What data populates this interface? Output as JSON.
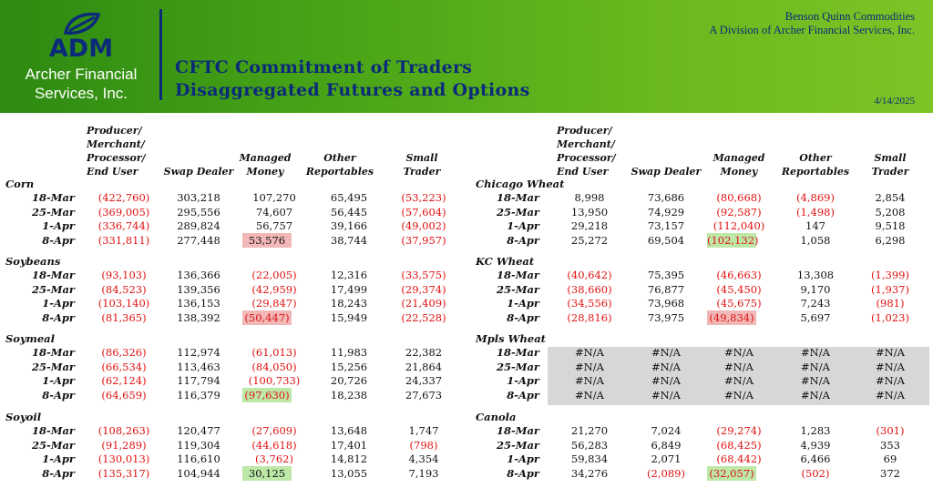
{
  "header": {
    "logo_text": "ADM",
    "company_line1": "Archer Financial",
    "company_line2": "Services, Inc.",
    "title_line1": "CFTC Commitment of Traders",
    "title_line2": "Disaggregated Futures and Options",
    "firm_name": "Benson Quinn Commodities",
    "firm_division": "A Division of Archer Financial Services, Inc.",
    "date": "4/14/2025",
    "colors": {
      "brand_blue": "#0b2a7a",
      "banner_green": "#48a416",
      "negative": "#e01010",
      "highlight_red": "#f2b7b7",
      "highlight_green": "#bde8a8",
      "na_gray": "#d7d7d7"
    }
  },
  "columns": {
    "producer": [
      "Producer/",
      "Merchant/",
      "Processor/",
      "End User"
    ],
    "swap": "Swap Dealer",
    "managed": [
      "Managed",
      "Money"
    ],
    "other": [
      "Other",
      "Reportables"
    ],
    "small": [
      "Small",
      "Trader"
    ]
  },
  "left_sections": [
    {
      "name": "Corn",
      "rows": [
        {
          "date": "18-Mar",
          "values": [
            "(422,760)",
            "303,218",
            "107,270",
            "65,495",
            "(53,223)"
          ]
        },
        {
          "date": "25-Mar",
          "values": [
            "(369,005)",
            "295,556",
            "74,607",
            "56,445",
            "(57,604)"
          ]
        },
        {
          "date": "1-Apr",
          "values": [
            "(336,744)",
            "289,824",
            "56,757",
            "39,166",
            "(49,002)"
          ]
        },
        {
          "date": "8-Apr",
          "values": [
            "(331,811)",
            "277,448",
            "53,576",
            "38,744",
            "(37,957)"
          ],
          "highlight": {
            "col": 2,
            "color": "red"
          }
        }
      ]
    },
    {
      "name": "Soybeans",
      "rows": [
        {
          "date": "18-Mar",
          "values": [
            "(93,103)",
            "136,366",
            "(22,005)",
            "12,316",
            "(33,575)"
          ]
        },
        {
          "date": "25-Mar",
          "values": [
            "(84,523)",
            "139,356",
            "(42,959)",
            "17,499",
            "(29,374)"
          ]
        },
        {
          "date": "1-Apr",
          "values": [
            "(103,140)",
            "136,153",
            "(29,847)",
            "18,243",
            "(21,409)"
          ]
        },
        {
          "date": "8-Apr",
          "values": [
            "(81,365)",
            "138,392",
            "(50,447)",
            "15,949",
            "(22,528)"
          ],
          "highlight": {
            "col": 2,
            "color": "red"
          }
        }
      ]
    },
    {
      "name": "Soymeal",
      "rows": [
        {
          "date": "18-Mar",
          "values": [
            "(86,326)",
            "112,974",
            "(61,013)",
            "11,983",
            "22,382"
          ]
        },
        {
          "date": "25-Mar",
          "values": [
            "(66,534)",
            "113,463",
            "(84,050)",
            "15,256",
            "21,864"
          ]
        },
        {
          "date": "1-Apr",
          "values": [
            "(62,124)",
            "117,794",
            "(100,733)",
            "20,726",
            "24,337"
          ]
        },
        {
          "date": "8-Apr",
          "values": [
            "(64,659)",
            "116,379",
            "(97,630)",
            "18,238",
            "27,673"
          ],
          "highlight": {
            "col": 2,
            "color": "green"
          }
        }
      ]
    },
    {
      "name": "Soyoil",
      "rows": [
        {
          "date": "18-Mar",
          "values": [
            "(108,263)",
            "120,477",
            "(27,609)",
            "13,648",
            "1,747"
          ]
        },
        {
          "date": "25-Mar",
          "values": [
            "(91,289)",
            "119,304",
            "(44,618)",
            "17,401",
            "(798)"
          ]
        },
        {
          "date": "1-Apr",
          "values": [
            "(130,013)",
            "116,610",
            "(3,762)",
            "14,812",
            "4,354"
          ]
        },
        {
          "date": "8-Apr",
          "values": [
            "(135,317)",
            "104,944",
            "30,125",
            "13,055",
            "7,193"
          ],
          "highlight": {
            "col": 2,
            "color": "green"
          }
        }
      ]
    }
  ],
  "right_sections": [
    {
      "name": "Chicago Wheat",
      "rows": [
        {
          "date": "18-Mar",
          "values": [
            "8,998",
            "73,686",
            "(80,668)",
            "(4,869)",
            "2,854"
          ]
        },
        {
          "date": "25-Mar",
          "values": [
            "13,950",
            "74,929",
            "(92,587)",
            "(1,498)",
            "5,208"
          ]
        },
        {
          "date": "1-Apr",
          "values": [
            "29,218",
            "73,157",
            "(112,040)",
            "147",
            "9,518"
          ]
        },
        {
          "date": "8-Apr",
          "values": [
            "25,272",
            "69,504",
            "(102,132)",
            "1,058",
            "6,298"
          ],
          "highlight": {
            "col": 2,
            "color": "green"
          }
        }
      ]
    },
    {
      "name": "KC Wheat",
      "rows": [
        {
          "date": "18-Mar",
          "values": [
            "(40,642)",
            "75,395",
            "(46,663)",
            "13,308",
            "(1,399)"
          ]
        },
        {
          "date": "25-Mar",
          "values": [
            "(38,660)",
            "76,877",
            "(45,450)",
            "9,170",
            "(1,937)"
          ]
        },
        {
          "date": "1-Apr",
          "values": [
            "(34,556)",
            "73,968",
            "(45,675)",
            "7,243",
            "(981)"
          ]
        },
        {
          "date": "8-Apr",
          "values": [
            "(28,816)",
            "73,975",
            "(49,834)",
            "5,697",
            "(1,023)"
          ],
          "highlight": {
            "col": 2,
            "color": "red"
          }
        }
      ]
    },
    {
      "name": "Mpls Wheat",
      "na": true,
      "rows": [
        {
          "date": "18-Mar",
          "values": [
            "#N/A",
            "#N/A",
            "#N/A",
            "#N/A",
            "#N/A"
          ]
        },
        {
          "date": "25-Mar",
          "values": [
            "#N/A",
            "#N/A",
            "#N/A",
            "#N/A",
            "#N/A"
          ]
        },
        {
          "date": "1-Apr",
          "values": [
            "#N/A",
            "#N/A",
            "#N/A",
            "#N/A",
            "#N/A"
          ]
        },
        {
          "date": "8-Apr",
          "values": [
            "#N/A",
            "#N/A",
            "#N/A",
            "#N/A",
            "#N/A"
          ]
        }
      ]
    },
    {
      "name": "Canola",
      "rows": [
        {
          "date": "18-Mar",
          "values": [
            "21,270",
            "7,024",
            "(29,274)",
            "1,283",
            "(301)"
          ]
        },
        {
          "date": "25-Mar",
          "values": [
            "56,283",
            "6,849",
            "(68,425)",
            "4,939",
            "353"
          ]
        },
        {
          "date": "1-Apr",
          "values": [
            "59,834",
            "2,071",
            "(68,442)",
            "6,466",
            "69"
          ]
        },
        {
          "date": "8-Apr",
          "values": [
            "34,276",
            "(2,089)",
            "(32,057)",
            "(502)",
            "372"
          ],
          "highlight": {
            "col": 2,
            "color": "green"
          }
        }
      ]
    }
  ]
}
